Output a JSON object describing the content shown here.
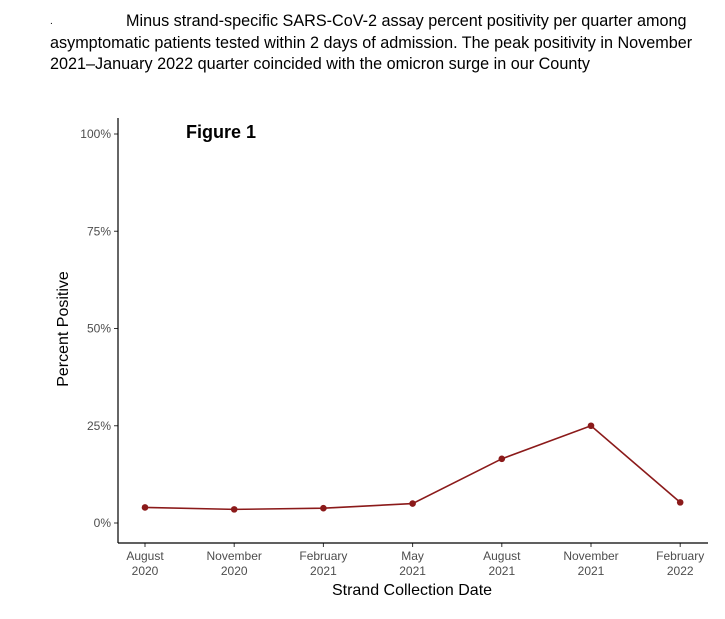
{
  "caption": {
    "marker": ".",
    "text": "Minus strand-specific SARS-CoV-2 assay percent positivity per quarter among asymptomatic patients tested within 2 days of admission. The peak positivity in November 2021–January 2022 quarter coincided with the omicron surge in our County"
  },
  "chart_data": {
    "type": "line",
    "title": "Figure 1",
    "xlabel": "Strand Collection Date",
    "ylabel": "Percent Positive",
    "ylim": [
      0,
      100
    ],
    "yticks": [
      0,
      25,
      50,
      75,
      100
    ],
    "ytick_labels": [
      "0%",
      "25%",
      "50%",
      "75%",
      "100%"
    ],
    "categories": [
      [
        "August",
        "2020"
      ],
      [
        "November",
        "2020"
      ],
      [
        "February",
        "2021"
      ],
      [
        "May",
        "2021"
      ],
      [
        "August",
        "2021"
      ],
      [
        "November",
        "2021"
      ],
      [
        "February",
        "2022"
      ]
    ],
    "series": [
      {
        "values": [
          4.0,
          3.5,
          3.8,
          5.0,
          16.5,
          25.0,
          5.3
        ]
      }
    ],
    "grid": false,
    "colors": {
      "line": "#8b1a1a",
      "axis": "#000000",
      "tick_text": "#4d4d4d"
    }
  }
}
